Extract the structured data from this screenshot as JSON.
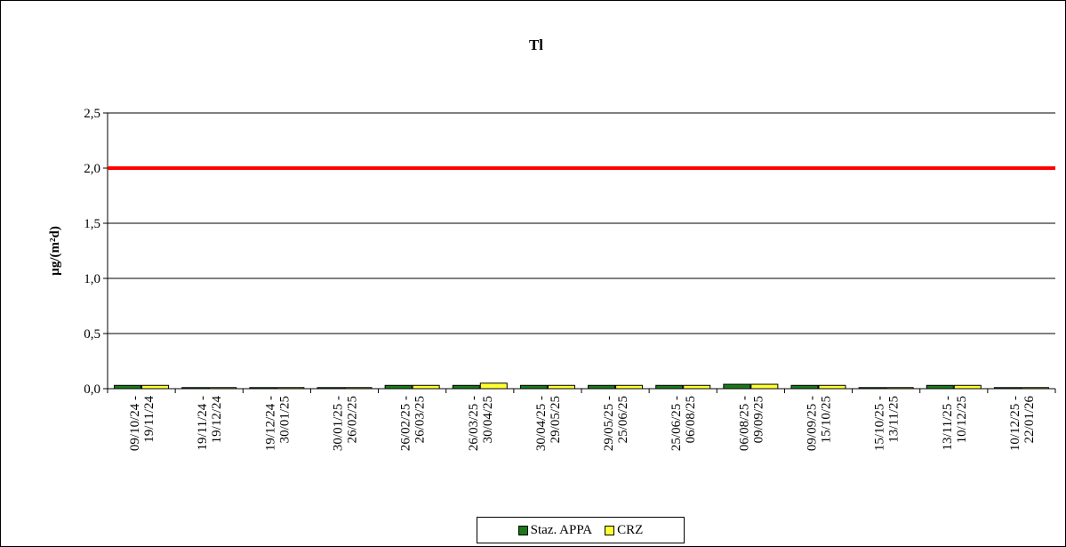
{
  "chart_data": {
    "type": "bar",
    "title": "Tl",
    "ylabel": "µg/(m²d)",
    "xlabel": "",
    "ylim": [
      0,
      2.5
    ],
    "yticks": [
      "0,0",
      "0,5",
      "1,0",
      "1,5",
      "2,0",
      "2,5"
    ],
    "ytick_values": [
      0,
      0.5,
      1.0,
      1.5,
      2.0,
      2.5
    ],
    "grid": true,
    "legend_position": "bottom",
    "categories": [
      "09/10/24 - 19/11/24",
      "19/11/24 - 19/12/24",
      "19/12/24 - 30/01/25",
      "30/01/25 - 26/02/25",
      "26/02/25 - 26/03/25",
      "26/03/25 - 30/04/25",
      "30/04/25 - 29/05/25",
      "29/05/25 - 25/06/25",
      "25/06/25 - 06/08/25",
      "06/08/25 - 09/09/25",
      "09/09/25 - 15/10/25",
      "15/10/25 - 13/11/25",
      "13/11/25 - 10/12/25",
      "10/12/25 - 22/01/26"
    ],
    "series": [
      {
        "name": "Staz. APPA",
        "color": "#1a7a1a",
        "values": [
          0.03,
          0.01,
          0.01,
          0.01,
          0.03,
          0.03,
          0.03,
          0.03,
          0.03,
          0.04,
          0.03,
          0.01,
          0.03,
          0.01
        ]
      },
      {
        "name": "CRZ",
        "color": "#ffff33",
        "values": [
          0.03,
          0.01,
          0.01,
          0.01,
          0.03,
          0.05,
          0.03,
          0.03,
          0.03,
          0.04,
          0.03,
          0.01,
          0.03,
          0.01
        ]
      }
    ],
    "reference_line": {
      "value": 2.0,
      "color": "#ff0000"
    }
  }
}
